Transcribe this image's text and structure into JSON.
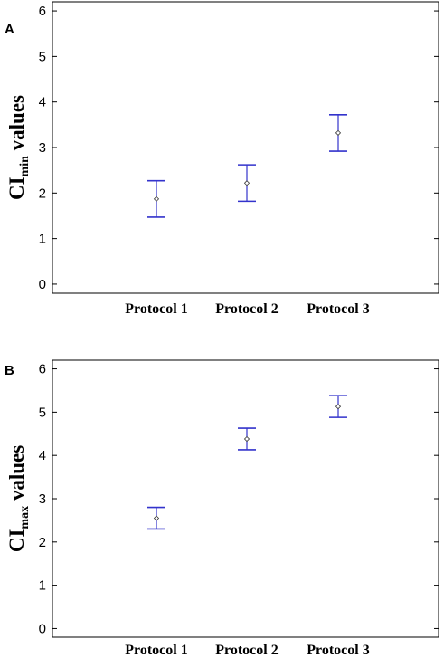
{
  "chart_data": [
    {
      "type": "scatter",
      "panel": "A",
      "ylabel": {
        "main": "CI",
        "sub": "min",
        "rest": " values"
      },
      "categories": [
        "Protocol 1",
        "Protocol 2",
        "Protocol 3"
      ],
      "ylim": [
        -0.2,
        6.2
      ],
      "yticks": [
        0,
        1,
        2,
        3,
        4,
        5,
        6
      ],
      "series": [
        {
          "mean": [
            1.87,
            2.22,
            3.32
          ],
          "lower": [
            1.47,
            1.82,
            2.92
          ],
          "upper": [
            2.27,
            2.62,
            3.72
          ]
        }
      ],
      "grid": false,
      "color": "#3333cc"
    },
    {
      "type": "scatter",
      "panel": "B",
      "ylabel": {
        "main": "CI",
        "sub": "max",
        "rest": " values"
      },
      "categories": [
        "Protocol 1",
        "Protocol 2",
        "Protocol 3"
      ],
      "ylim": [
        -0.2,
        6.2
      ],
      "yticks": [
        0,
        1,
        2,
        3,
        4,
        5,
        6
      ],
      "series": [
        {
          "mean": [
            2.55,
            4.38,
            5.13
          ],
          "lower": [
            2.3,
            4.13,
            4.88
          ],
          "upper": [
            2.8,
            4.63,
            5.38
          ]
        }
      ],
      "grid": false,
      "color": "#3333cc"
    }
  ]
}
